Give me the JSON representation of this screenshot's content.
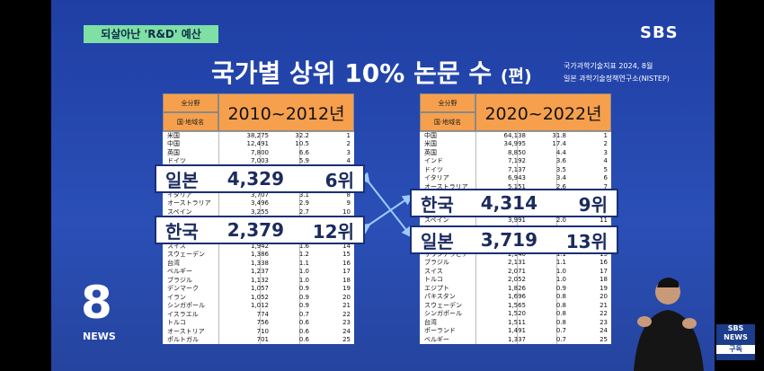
{
  "header": {
    "tag": "되살아난 'R&D' 예산",
    "logo": "SBS",
    "title": "국가별 상위 10% 논문 수",
    "title_unit": "(편)",
    "source": [
      "국가과학기술지표 2024, 8월",
      "일본 과학기술정책연구소(NISTEP)"
    ]
  },
  "tables": [
    {
      "head_top": "全分野",
      "head_bottom": "国·地域名",
      "period": "2010~2012년",
      "blocks": [
        [
          [
            "米国",
            "38,275",
            "32.2",
            "1"
          ],
          [
            "中国",
            "12,491",
            "10.5",
            "2"
          ],
          [
            "英国",
            "7,800",
            "6.6",
            "3"
          ],
          [
            "ドイツ",
            "7,003",
            "5.9",
            "4"
          ]
        ],
        [
          [
            "イタリア",
            "3,707",
            "3.1",
            "8"
          ],
          [
            "オーストラリア",
            "3,496",
            "2.9",
            "9"
          ],
          [
            "スペイン",
            "3,255",
            "2.7",
            "10"
          ]
        ],
        [
          [
            "スイス",
            "1,942",
            "1.6",
            "14"
          ],
          [
            "スウェーデン",
            "1,386",
            "1.2",
            "15"
          ],
          [
            "台湾",
            "1,338",
            "1.1",
            "16"
          ],
          [
            "ベルギー",
            "1,237",
            "1.0",
            "17"
          ],
          [
            "ブラジル",
            "1,132",
            "1.0",
            "18"
          ],
          [
            "デンマーク",
            "1,057",
            "0.9",
            "19"
          ],
          [
            "イラン",
            "1,052",
            "0.9",
            "20"
          ],
          [
            "シンガポール",
            "1,012",
            "0.9",
            "21"
          ],
          [
            "イスラエル",
            "774",
            "0.7",
            "22"
          ],
          [
            "トルコ",
            "756",
            "0.6",
            "23"
          ],
          [
            "オーストリア",
            "710",
            "0.6",
            "24"
          ],
          [
            "ポルトガル",
            "701",
            "0.6",
            "25"
          ]
        ]
      ],
      "highlights": [
        [
          "일본",
          "4,329",
          "6위"
        ],
        [
          "한국",
          "2,379",
          "12위"
        ]
      ]
    },
    {
      "head_top": "全分野",
      "head_bottom": "国·地域名",
      "period": "2020~2022년",
      "blocks": [
        [
          [
            "中国",
            "64,138",
            "31.8",
            "1"
          ],
          [
            "米国",
            "34,995",
            "17.4",
            "2"
          ],
          [
            "英国",
            "8,850",
            "4.4",
            "3"
          ],
          [
            "インド",
            "7,192",
            "3.6",
            "4"
          ],
          [
            "ドイツ",
            "7,137",
            "3.5",
            "5"
          ],
          [
            "イタリア",
            "6,943",
            "3.4",
            "6"
          ],
          [
            "オーストラリア",
            "5,151",
            "2.6",
            "7"
          ]
        ],
        [
          [
            "スペイン",
            "3,991",
            "2.0",
            "11"
          ]
        ],
        [
          [
            "サウジアラビア",
            "2,140",
            "1.1",
            "15"
          ],
          [
            "ブラジル",
            "2,131",
            "1.1",
            "16"
          ],
          [
            "スイス",
            "2,071",
            "1.0",
            "17"
          ],
          [
            "トルコ",
            "2,052",
            "1.0",
            "18"
          ],
          [
            "エジプト",
            "1,826",
            "0.9",
            "19"
          ],
          [
            "パキスタン",
            "1,696",
            "0.8",
            "20"
          ],
          [
            "スウェーデン",
            "1,565",
            "0.8",
            "21"
          ],
          [
            "シンガポール",
            "1,520",
            "0.8",
            "22"
          ],
          [
            "台湾",
            "1,511",
            "0.8",
            "23"
          ],
          [
            "ポーランド",
            "1,491",
            "0.7",
            "24"
          ],
          [
            "ベルギー",
            "1,337",
            "0.7",
            "25"
          ]
        ]
      ],
      "highlights": [
        [
          "한국",
          "4,314",
          "9위"
        ],
        [
          "일본",
          "3,719",
          "13위"
        ]
      ]
    }
  ],
  "footer": {
    "news_logo": "8",
    "news_label": "NEWS",
    "channel": [
      "SBS",
      "NEWS"
    ],
    "subscribe": "구독"
  }
}
